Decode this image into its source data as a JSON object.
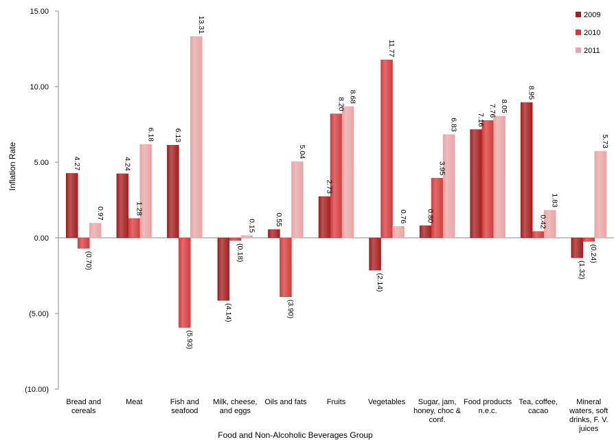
{
  "chart_data": {
    "type": "bar",
    "title": "",
    "xlabel": "Food and Non-Alcoholic Beverages Group",
    "ylabel": "Inflation Rate",
    "ylim": [
      -10,
      15
    ],
    "yticks": [
      {
        "value": 15,
        "label": "15.00"
      },
      {
        "value": 10,
        "label": "10.00"
      },
      {
        "value": 5,
        "label": "5.00"
      },
      {
        "value": 0,
        "label": "0.00"
      },
      {
        "value": -5,
        "label": "(5.00)"
      },
      {
        "value": -10,
        "label": "(10.00)"
      }
    ],
    "grid": false,
    "legend_position": "top-right",
    "categories": [
      [
        "Bread and",
        "cereals"
      ],
      [
        "Meat"
      ],
      [
        "Fish and",
        "seafood"
      ],
      [
        "Milk, cheese,",
        "and eggs"
      ],
      [
        "Oils and fats"
      ],
      [
        "Fruits"
      ],
      [
        "Vegetables"
      ],
      [
        "Sugar, jam,",
        "honey, choc &",
        "conf."
      ],
      [
        "Food products",
        "n.e.c."
      ],
      [
        "Tea, coffee,",
        "cacao"
      ],
      [
        "Mineral",
        "waters, soft",
        "drinks, F. V.",
        "juices"
      ]
    ],
    "series": [
      {
        "name": "2009",
        "color": "#a31d1d",
        "values": [
          4.27,
          4.24,
          6.13,
          -4.14,
          0.55,
          2.73,
          -2.14,
          0.8,
          7.16,
          8.95,
          -1.32
        ],
        "labels": [
          "4.27",
          "4.24",
          "6.13",
          "(4.14)",
          "0.55",
          "2.73",
          "(2.14)",
          "0.80",
          "7.16",
          "8.95",
          "(1.32)"
        ]
      },
      {
        "name": "2010",
        "color": "#d43a3a",
        "values": [
          -0.7,
          1.28,
          -5.93,
          -0.18,
          -3.9,
          8.2,
          11.77,
          3.95,
          7.76,
          0.42,
          -0.24
        ],
        "labels": [
          "(0.70)",
          "1.28",
          "(5.93)",
          "(0.18)",
          "(3.90)",
          "8.20",
          "11.77",
          "3.95",
          "7.76",
          "0.42",
          "(0.24)"
        ]
      },
      {
        "name": "2011",
        "color": "#e8a5a5",
        "values": [
          0.97,
          6.18,
          13.31,
          0.15,
          5.04,
          8.68,
          0.76,
          6.83,
          8.05,
          1.83,
          5.73
        ],
        "labels": [
          "0.97",
          "6.18",
          "13.31",
          "0.15",
          "5.04",
          "8.68",
          "0.76",
          "6.83",
          "8.05",
          "1.83",
          "5.73"
        ]
      }
    ]
  }
}
